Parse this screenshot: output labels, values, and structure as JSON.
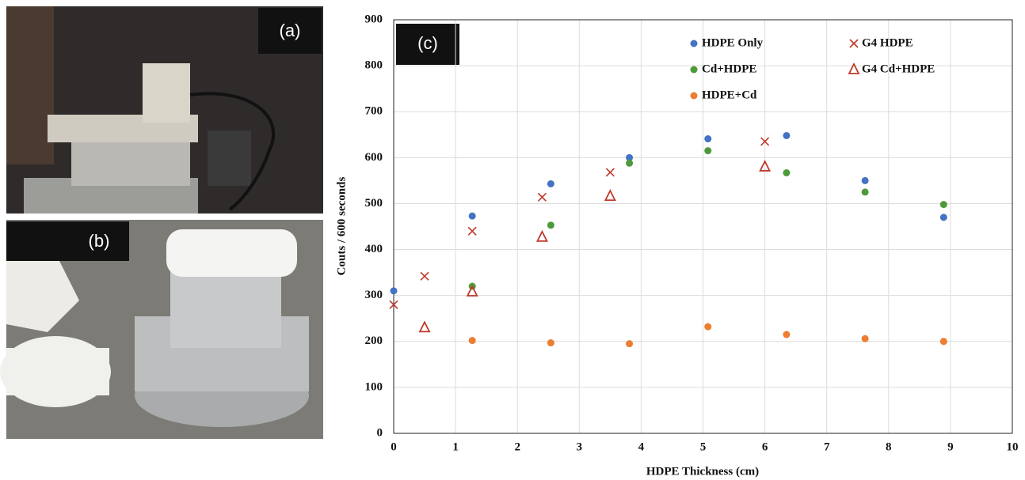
{
  "panel_labels": [
    "(a)",
    "(b)",
    "(c)"
  ],
  "chart_data": {
    "type": "scatter",
    "x_label": "HDPE Thickness (cm)",
    "y_label": "Couts / 600 seconds",
    "xlim": [
      0,
      10
    ],
    "xticks": [
      0,
      1,
      2,
      3,
      4,
      5,
      6,
      7,
      8,
      9,
      10
    ],
    "ylim": [
      0,
      900
    ],
    "yticks": [
      0,
      100,
      200,
      300,
      400,
      500,
      600,
      700,
      800,
      900
    ],
    "grid": true,
    "series": [
      {
        "name": "HDPE Only",
        "color": "#4472c4",
        "marker": "circle",
        "x": [
          0,
          1.27,
          2.54,
          3.81,
          5.08,
          6.35,
          7.62,
          8.89
        ],
        "values": [
          310,
          473,
          543,
          600,
          641,
          648,
          550,
          470
        ]
      },
      {
        "name": "Cd+HDPE",
        "color": "#4e9a3a",
        "marker": "circle",
        "x": [
          1.27,
          2.54,
          3.81,
          5.08,
          6.35,
          7.62,
          8.89
        ],
        "values": [
          320,
          453,
          588,
          615,
          567,
          525,
          498
        ]
      },
      {
        "name": "HDPE+Cd",
        "color": "#ed7d31",
        "marker": "circle",
        "x": [
          1.27,
          2.54,
          3.81,
          5.08,
          6.35,
          7.62,
          8.89
        ],
        "values": [
          202,
          197,
          195,
          232,
          215,
          206,
          200
        ]
      },
      {
        "name": "G4 HDPE",
        "color": "#c0392b",
        "marker": "x",
        "x": [
          0,
          0.5,
          1.27,
          2.4,
          3.5,
          6.0
        ],
        "values": [
          280,
          342,
          440,
          514,
          568,
          635
        ]
      },
      {
        "name": "G4 Cd+HDPE",
        "color": "#c0392b",
        "marker": "triangle",
        "x": [
          0.5,
          1.27,
          2.4,
          3.5,
          6.0
        ],
        "values": [
          230,
          308,
          427,
          516,
          580
        ]
      }
    ]
  }
}
